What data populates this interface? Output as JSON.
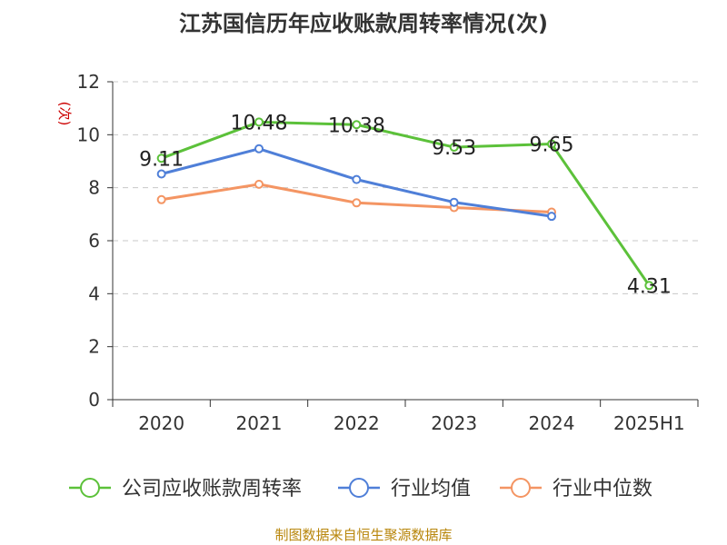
{
  "title": "江苏国信历年应收账款周转率情况(次)",
  "source": "制图数据来自恒生聚源数据库",
  "chart_data": {
    "type": "line",
    "title": "江苏国信历年应收账款周转率情况(次)",
    "ylabel": "(次)",
    "xlabel": "",
    "categories": [
      "2020",
      "2021",
      "2022",
      "2023",
      "2024",
      "2025H1"
    ],
    "ylim": [
      0,
      12
    ],
    "yticks": [
      0,
      2,
      4,
      6,
      8,
      10,
      12
    ],
    "grid": true,
    "legend_position": "bottom",
    "series": [
      {
        "name": "公司应收账款周转率",
        "color": "#5cc13a",
        "values": [
          9.11,
          10.48,
          10.38,
          9.53,
          9.65,
          4.31
        ],
        "labels": [
          "9.11",
          "10.48",
          "10.38",
          "9.53",
          "9.65",
          "4.31"
        ]
      },
      {
        "name": "行业均值",
        "color": "#4f7fd8",
        "values": [
          8.52,
          9.47,
          8.31,
          7.45,
          6.92,
          null
        ]
      },
      {
        "name": "行业中位数",
        "color": "#f49563",
        "values": [
          7.55,
          8.13,
          7.43,
          7.25,
          7.08,
          null
        ]
      }
    ]
  }
}
